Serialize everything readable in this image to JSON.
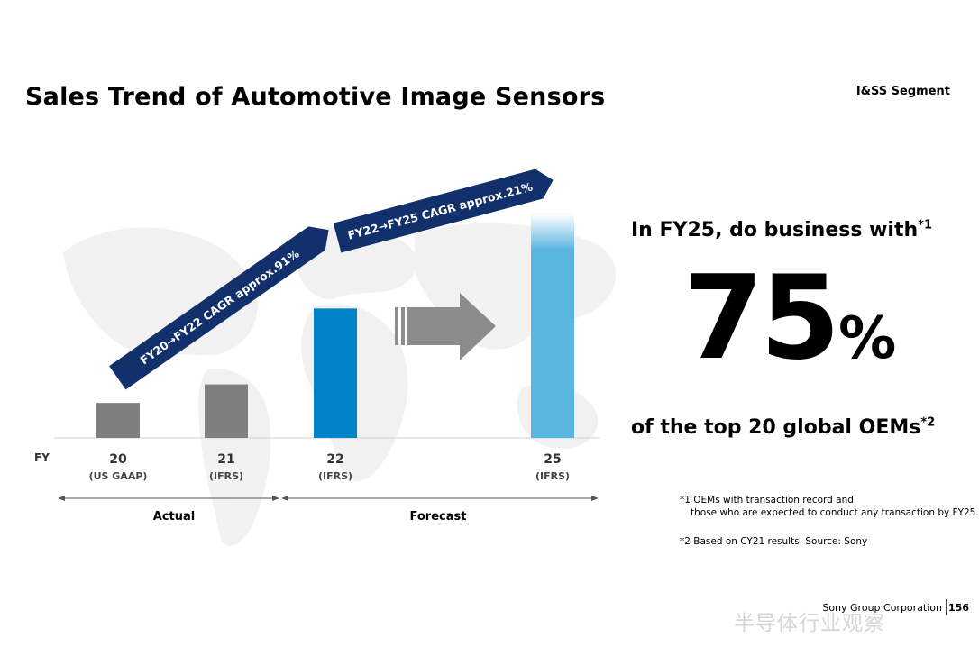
{
  "header": {
    "title": "Sales Trend of Automotive Image Sensors",
    "segment": "I&SS Segment"
  },
  "chart_data": {
    "type": "bar",
    "axis_label": "FY",
    "categories": [
      "20",
      "21",
      "22",
      "25"
    ],
    "category_sublabels": [
      "(US GAAP)",
      "(IFRS)",
      "(IFRS)",
      "(IFRS)"
    ],
    "values": [
      0.36,
      0.55,
      1.33,
      2.3
    ],
    "bar_colors": [
      "#7f7f7f",
      "#7f7f7f",
      "#0083c8",
      "#5ab5e0"
    ],
    "periods": [
      {
        "label": "Actual",
        "categories": [
          "20",
          "21"
        ]
      },
      {
        "label": "Forecast",
        "categories": [
          "22",
          "25"
        ]
      }
    ],
    "annotations": {
      "cagr1": "FY20→FY22  CAGR approx.91%",
      "cagr2": "FY22→FY25  CAGR approx.21%"
    },
    "banner_color": "#12306b",
    "arrow_color": "#8c8c8c",
    "grid": false
  },
  "highlight": {
    "lead": "In FY25, do business with",
    "lead_note": "*1",
    "number": "75",
    "unit": "%",
    "tail": "of the top 20 global OEMs",
    "tail_note": "*2"
  },
  "notes": {
    "n1_line1": "*1 OEMs with transaction record and",
    "n1_line2": "those who are expected to conduct any transaction by FY25.",
    "n2": "*2 Based on CY21 results.  Source: Sony"
  },
  "footer": {
    "company": "Sony Group Corporation",
    "page": "156",
    "watermark": "半导体行业观察"
  }
}
